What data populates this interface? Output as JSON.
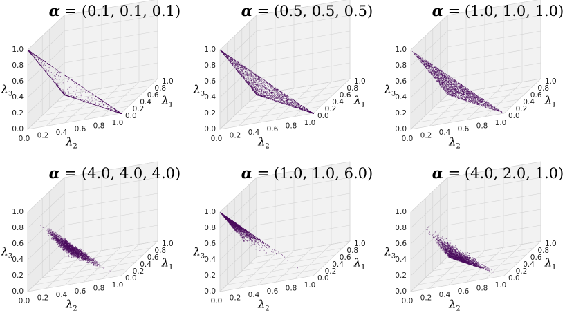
{
  "chart_data": [
    {
      "type": "scatter",
      "title": "α = (0.1, 0.1, 0.1)",
      "alpha": [
        0.1,
        0.1,
        0.1
      ],
      "xlabel": "λ1",
      "ylabel": "λ2",
      "zlabel": "λ3",
      "xlim": [
        0,
        1
      ],
      "ylim": [
        0,
        1
      ],
      "zlim": [
        0,
        1
      ],
      "ticks": [
        "0.0",
        "0.2",
        "0.4",
        "0.6",
        "0.8",
        "1.0"
      ],
      "color": "#4b0c5e",
      "grid": true
    },
    {
      "type": "scatter",
      "title": "α = (0.5, 0.5, 0.5)",
      "alpha": [
        0.5,
        0.5,
        0.5
      ],
      "xlabel": "λ1",
      "ylabel": "λ2",
      "zlabel": "λ3",
      "xlim": [
        0,
        1
      ],
      "ylim": [
        0,
        1
      ],
      "zlim": [
        0,
        1
      ],
      "ticks": [
        "0.0",
        "0.2",
        "0.4",
        "0.6",
        "0.8",
        "1.0"
      ],
      "color": "#4b0c5e",
      "grid": true
    },
    {
      "type": "scatter",
      "title": "α = (1.0, 1.0, 1.0)",
      "alpha": [
        1.0,
        1.0,
        1.0
      ],
      "xlabel": "λ1",
      "ylabel": "λ2",
      "zlabel": "λ3",
      "xlim": [
        0,
        1
      ],
      "ylim": [
        0,
        1
      ],
      "zlim": [
        0,
        1
      ],
      "ticks": [
        "0.0",
        "0.2",
        "0.4",
        "0.6",
        "0.8",
        "1.0"
      ],
      "color": "#4b0c5e",
      "grid": true
    },
    {
      "type": "scatter",
      "title": "α = (4.0, 4.0, 4.0)",
      "alpha": [
        4.0,
        4.0,
        4.0
      ],
      "xlabel": "λ1",
      "ylabel": "λ2",
      "zlabel": "λ3",
      "xlim": [
        0,
        1
      ],
      "ylim": [
        0,
        1
      ],
      "zlim": [
        0,
        1
      ],
      "ticks": [
        "0.0",
        "0.2",
        "0.4",
        "0.6",
        "0.8",
        "1.0"
      ],
      "color": "#4b0c5e",
      "grid": true
    },
    {
      "type": "scatter",
      "title": "α = (1.0, 1.0, 6.0)",
      "alpha": [
        1.0,
        1.0,
        6.0
      ],
      "xlabel": "λ1",
      "ylabel": "λ2",
      "zlabel": "λ3",
      "xlim": [
        0,
        1
      ],
      "ylim": [
        0,
        1
      ],
      "zlim": [
        0,
        1
      ],
      "ticks": [
        "0.0",
        "0.2",
        "0.4",
        "0.6",
        "0.8",
        "1.0"
      ],
      "color": "#4b0c5e",
      "grid": true
    },
    {
      "type": "scatter",
      "title": "α = (4.0, 2.0, 1.0)",
      "alpha": [
        4.0,
        2.0,
        1.0
      ],
      "xlabel": "λ1",
      "ylabel": "λ2",
      "zlabel": "λ3",
      "xlim": [
        0,
        1
      ],
      "ylim": [
        0,
        1
      ],
      "zlim": [
        0,
        1
      ],
      "ticks": [
        "0.0",
        "0.2",
        "0.4",
        "0.6",
        "0.8",
        "1.0"
      ],
      "color": "#4b0c5e",
      "grid": true
    }
  ]
}
